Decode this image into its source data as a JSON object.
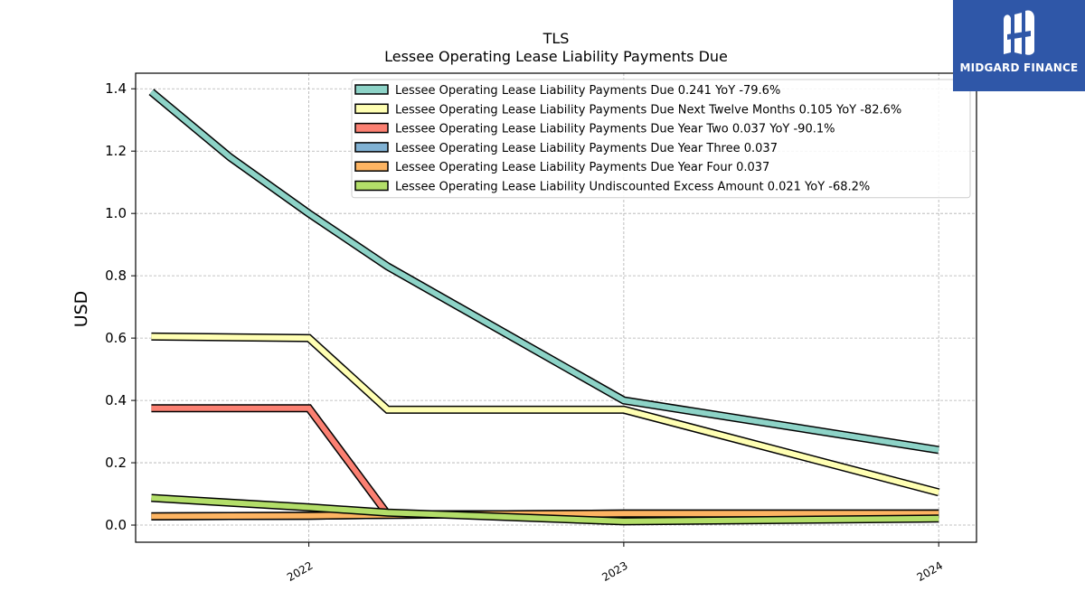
{
  "chart_data": {
    "type": "line",
    "title": "TLS",
    "subtitle": "Lessee Operating Lease Liability Payments Due",
    "xlabel": "",
    "ylabel": "USD",
    "xlim": [
      2021.45,
      2024.12
    ],
    "ylim": [
      -0.055,
      1.45
    ],
    "yticks": [
      0.0,
      0.2,
      0.4,
      0.6,
      0.8,
      1.0,
      1.2,
      1.4
    ],
    "ytick_labels": [
      "0.0",
      "0.2",
      "0.4",
      "0.6",
      "0.8",
      "1.0",
      "1.2",
      "1.4"
    ],
    "xticks": [
      2022,
      2023,
      2024
    ],
    "xtick_labels": [
      "2022",
      "2023",
      "2024"
    ],
    "grid": true,
    "legend_position": "top-right",
    "series": [
      {
        "name": "Lessee Operating Lease Liability Payments Due",
        "legend": "Lessee Operating Lease Liability Payments Due  0.241 YoY -79.6%",
        "color": "#8dd3c7",
        "x": [
          2021.5,
          2021.75,
          2022.0,
          2022.25,
          2023.0,
          2024.0
        ],
        "y": [
          1.39,
          1.18,
          1.0,
          0.83,
          0.4,
          0.241
        ]
      },
      {
        "name": "Lessee Operating Lease Liability Payments Due Next Twelve Months",
        "legend": "Lessee Operating Lease Liability Payments Due Next Twelve Months  0.105 YoY -82.6%",
        "color": "#ffffb3",
        "x": [
          2021.5,
          2022.0,
          2022.25,
          2023.0,
          2024.0
        ],
        "y": [
          0.605,
          0.6,
          0.37,
          0.37,
          0.105
        ]
      },
      {
        "name": "Lessee Operating Lease Liability Payments Due Year Two",
        "legend": "Lessee Operating Lease Liability Payments Due Year Two  0.037 YoY -90.1%",
        "color": "#fb8072",
        "x": [
          2021.5,
          2022.0,
          2022.25,
          2023.0,
          2024.0
        ],
        "y": [
          0.375,
          0.375,
          0.035,
          0.035,
          0.037
        ]
      },
      {
        "name": "Lessee Operating Lease Liability Payments Due Year Three",
        "legend": "Lessee Operating Lease Liability Payments Due Year Three  0.037",
        "color": "#80b1d3",
        "x": [
          2021.5,
          2022.0,
          2022.25,
          2023.0,
          2024.0
        ],
        "y": [
          0.028,
          0.03,
          0.033,
          0.037,
          0.037
        ]
      },
      {
        "name": "Lessee Operating Lease Liability Payments Due Year Four",
        "legend": "Lessee Operating Lease Liability Payments Due Year Four  0.037",
        "color": "#fdb462",
        "x": [
          2021.5,
          2022.0,
          2022.25,
          2023.0,
          2024.0
        ],
        "y": [
          0.028,
          0.03,
          0.033,
          0.037,
          0.037
        ]
      },
      {
        "name": "Lessee Operating Lease Liability Undiscounted Excess Amount",
        "legend": "Lessee Operating Lease Liability Undiscounted Excess Amount  0.021 YoY -68.2%",
        "color": "#b3de69",
        "x": [
          2021.5,
          2021.75,
          2022.0,
          2022.25,
          2023.0,
          2024.0
        ],
        "y": [
          0.087,
          0.072,
          0.057,
          0.04,
          0.012,
          0.021
        ]
      }
    ]
  },
  "logo": {
    "text": "MIDGARD FINANCE",
    "color": "#2f57a8"
  }
}
